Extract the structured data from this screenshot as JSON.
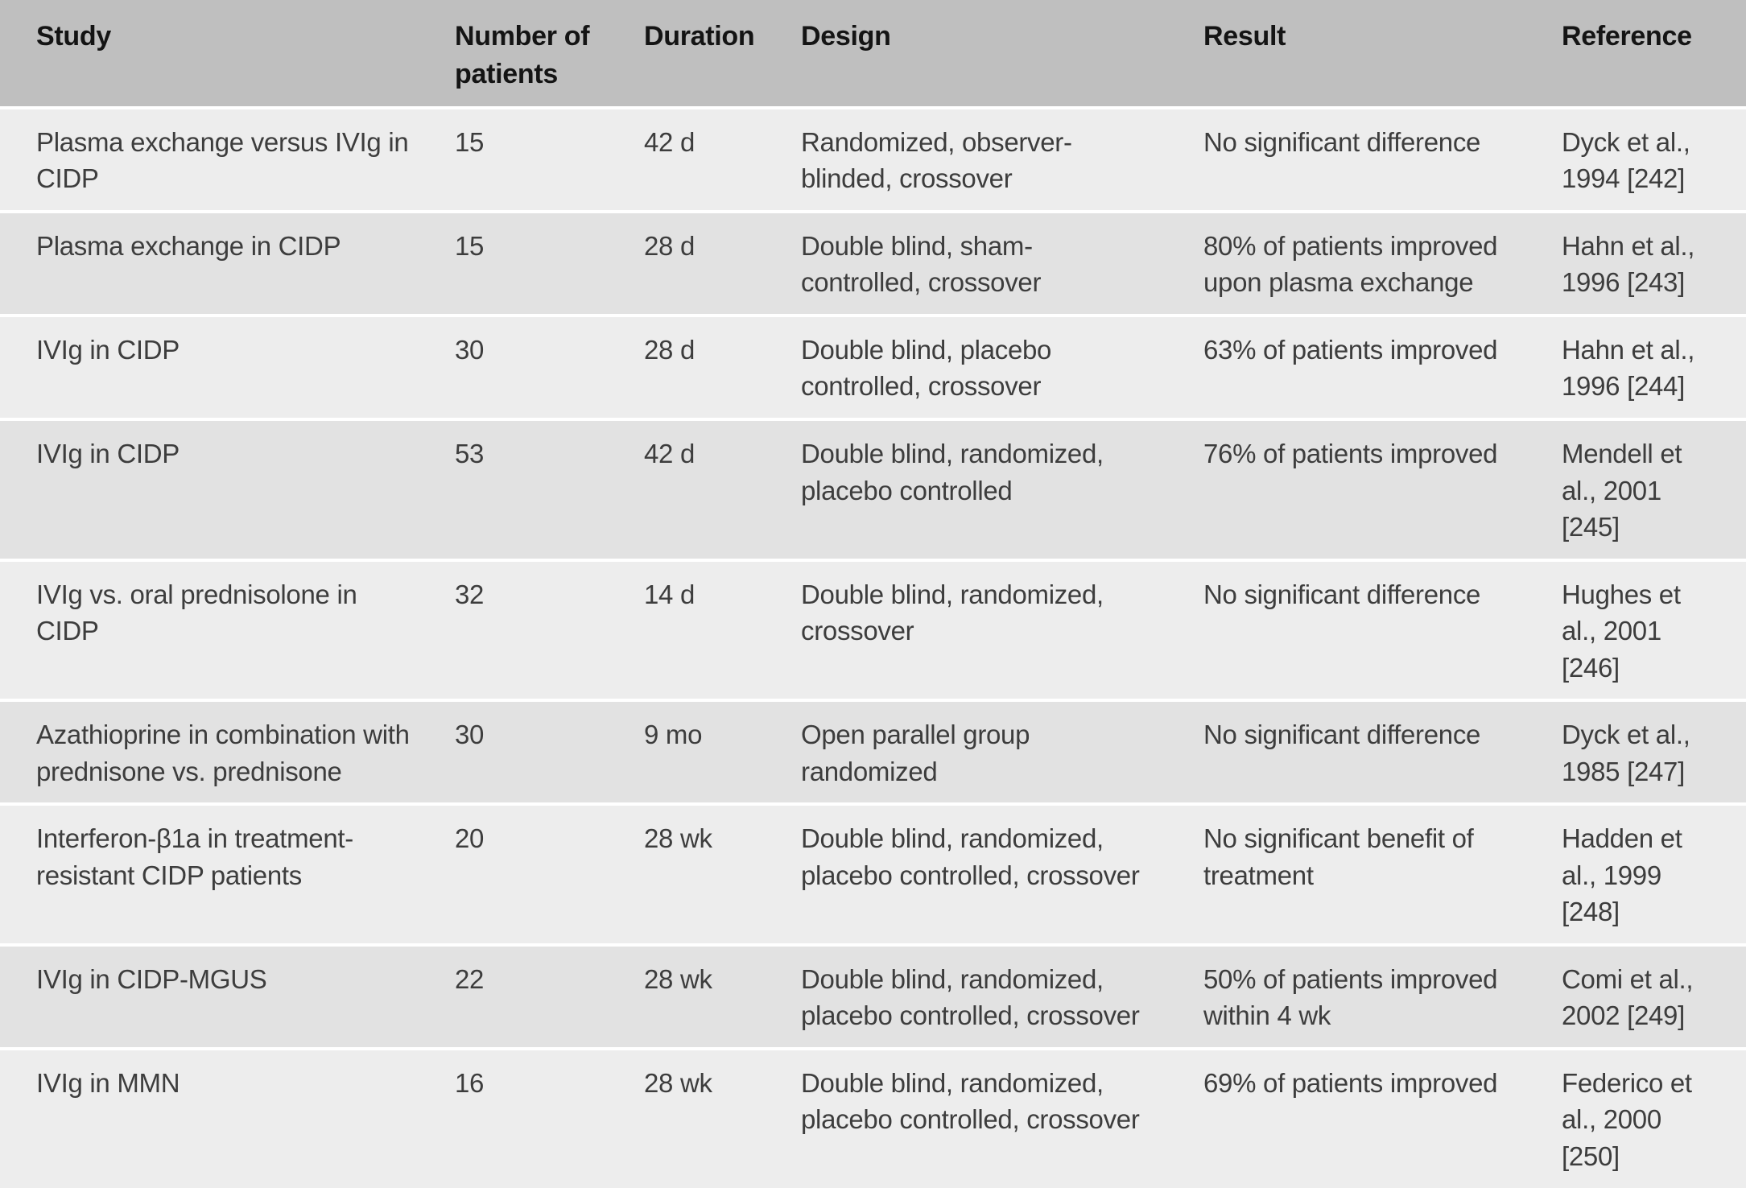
{
  "colors": {
    "header_bg": "#bfbfbf",
    "row_light_bg": "#ededed",
    "row_dark_bg": "#e2e2e2",
    "separator": "#ffffff",
    "header_text": "#141414",
    "body_text": "#3d3d3d"
  },
  "table": {
    "columns": [
      "Study",
      "Number of patients",
      "Duration",
      "Design",
      "Result",
      "Reference"
    ],
    "rows": [
      {
        "study": "Plasma exchange versus IVIg in CIDP",
        "patients": "15",
        "duration": "42 d",
        "design": "Randomized, observer-blinded, crossover",
        "result": "No significant difference",
        "reference": "Dyck et al., 1994 [242]"
      },
      {
        "study": "Plasma exchange in CIDP",
        "patients": "15",
        "duration": "28 d",
        "design": "Double blind, sham-controlled, crossover",
        "result": "80% of patients improved upon plasma exchange",
        "reference": "Hahn et al., 1996 [243]"
      },
      {
        "study": "IVIg in CIDP",
        "patients": "30",
        "duration": "28 d",
        "design": "Double blind, placebo controlled, crossover",
        "result": "63% of patients improved",
        "reference": "Hahn et al., 1996 [244]"
      },
      {
        "study": "IVIg in CIDP",
        "patients": "53",
        "duration": "42 d",
        "design": "Double blind, randomized, placebo controlled",
        "result": "76% of patients improved",
        "reference": "Mendell et al., 2001 [245]"
      },
      {
        "study": "IVIg vs. oral prednisolone in CIDP",
        "patients": "32",
        "duration": "14 d",
        "design": "Double blind, randomized, crossover",
        "result": "No significant difference",
        "reference": "Hughes et al., 2001 [246]"
      },
      {
        "study": "Azathioprine in combination with prednisone vs. prednisone",
        "patients": "30",
        "duration": "9 mo",
        "design": "Open parallel group randomized",
        "result": "No significant difference",
        "reference": "Dyck et al., 1985 [247]"
      },
      {
        "study": "Interferon-β1a in treatment-resistant CIDP patients",
        "patients": "20",
        "duration": "28 wk",
        "design": "Double blind, randomized, placebo controlled, crossover",
        "result": "No significant benefit of treatment",
        "reference": "Hadden et al., 1999 [248]"
      },
      {
        "study": "IVIg in CIDP-MGUS",
        "patients": "22",
        "duration": "28 wk",
        "design": "Double blind, randomized, placebo controlled, crossover",
        "result": "50% of patients improved within 4 wk",
        "reference": "Comi et al., 2002 [249]"
      },
      {
        "study": "IVIg in MMN",
        "patients": "16",
        "duration": "28 wk",
        "design": "Double blind, randomized, placebo controlled, crossover",
        "result": "69% of patients improved",
        "reference": "Federico et al., 2000 [250]"
      }
    ]
  },
  "chart_data": {
    "type": "table",
    "title": "",
    "columns": [
      "Study",
      "Number of patients",
      "Duration",
      "Design",
      "Result",
      "Reference"
    ],
    "rows": [
      [
        "Plasma exchange versus IVIg in CIDP",
        "15",
        "42 d",
        "Randomized, observer-blinded, crossover",
        "No significant difference",
        "Dyck et al., 1994 [242]"
      ],
      [
        "Plasma exchange in CIDP",
        "15",
        "28 d",
        "Double blind, sham-controlled, crossover",
        "80% of patients improved upon plasma exchange",
        "Hahn et al., 1996 [243]"
      ],
      [
        "IVIg in CIDP",
        "30",
        "28 d",
        "Double blind, placebo controlled, crossover",
        "63% of patients improved",
        "Hahn et al., 1996 [244]"
      ],
      [
        "IVIg in CIDP",
        "53",
        "42 d",
        "Double blind, randomized, placebo controlled",
        "76% of patients improved",
        "Mendell et al., 2001 [245]"
      ],
      [
        "IVIg vs. oral prednisolone in CIDP",
        "32",
        "14 d",
        "Double blind, randomized, crossover",
        "No significant difference",
        "Hughes et al., 2001 [246]"
      ],
      [
        "Azathioprine in combination with prednisone vs. prednisone",
        "30",
        "9 mo",
        "Open parallel group randomized",
        "No significant difference",
        "Dyck et al., 1985 [247]"
      ],
      [
        "Interferon-β1a in treatment-resistant CIDP patients",
        "20",
        "28 wk",
        "Double blind, randomized, placebo controlled, crossover",
        "No significant benefit of treatment",
        "Hadden et al., 1999 [248]"
      ],
      [
        "IVIg in CIDP-MGUS",
        "22",
        "28 wk",
        "Double blind, randomized, placebo controlled, crossover",
        "50% of patients improved within 4 wk",
        "Comi et al., 2002 [249]"
      ],
      [
        "IVIg in MMN",
        "16",
        "28 wk",
        "Double blind, randomized, placebo controlled, crossover",
        "69% of patients improved",
        "Federico et al., 2000 [250]"
      ]
    ]
  }
}
